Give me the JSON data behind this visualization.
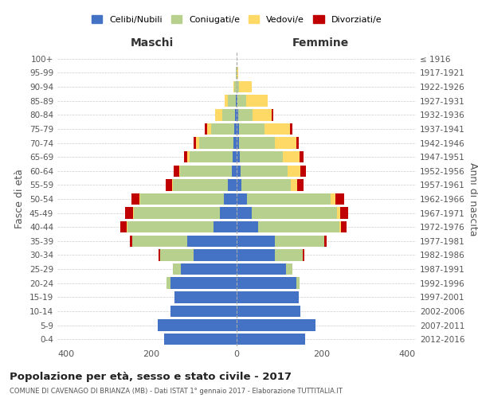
{
  "age_groups": [
    "0-4",
    "5-9",
    "10-14",
    "15-19",
    "20-24",
    "25-29",
    "30-34",
    "35-39",
    "40-44",
    "45-49",
    "50-54",
    "55-59",
    "60-64",
    "65-69",
    "70-74",
    "75-79",
    "80-84",
    "85-89",
    "90-94",
    "95-99",
    "100+"
  ],
  "birth_years": [
    "2012-2016",
    "2007-2011",
    "2002-2006",
    "1997-2001",
    "1992-1996",
    "1987-1991",
    "1982-1986",
    "1977-1981",
    "1972-1976",
    "1967-1971",
    "1962-1966",
    "1957-1961",
    "1952-1956",
    "1947-1951",
    "1942-1946",
    "1937-1941",
    "1932-1936",
    "1927-1931",
    "1922-1926",
    "1917-1921",
    "≤ 1916"
  ],
  "maschi": {
    "celibi": [
      170,
      185,
      155,
      145,
      155,
      130,
      100,
      115,
      55,
      40,
      30,
      20,
      12,
      10,
      8,
      5,
      3,
      2,
      0,
      0,
      0
    ],
    "coniugati": [
      0,
      0,
      0,
      0,
      10,
      20,
      80,
      130,
      200,
      200,
      195,
      130,
      120,
      100,
      80,
      55,
      30,
      18,
      5,
      1,
      0
    ],
    "vedovi": [
      0,
      0,
      0,
      0,
      0,
      0,
      0,
      0,
      2,
      2,
      2,
      2,
      3,
      5,
      8,
      10,
      18,
      8,
      2,
      0,
      0
    ],
    "divorziati": [
      0,
      0,
      0,
      0,
      0,
      0,
      3,
      5,
      15,
      20,
      20,
      15,
      12,
      8,
      5,
      5,
      0,
      0,
      0,
      0,
      0
    ]
  },
  "femmine": {
    "nubili": [
      160,
      185,
      150,
      145,
      140,
      115,
      90,
      90,
      50,
      35,
      25,
      12,
      10,
      8,
      5,
      5,
      3,
      2,
      0,
      0,
      0
    ],
    "coniugate": [
      0,
      0,
      0,
      0,
      8,
      15,
      65,
      115,
      190,
      200,
      195,
      115,
      110,
      100,
      85,
      60,
      35,
      20,
      5,
      0,
      0
    ],
    "vedove": [
      0,
      0,
      0,
      0,
      0,
      0,
      0,
      0,
      5,
      8,
      12,
      15,
      30,
      40,
      50,
      60,
      45,
      50,
      30,
      3,
      0
    ],
    "divorziate": [
      0,
      0,
      0,
      0,
      0,
      0,
      3,
      5,
      12,
      18,
      20,
      15,
      12,
      8,
      5,
      5,
      3,
      0,
      0,
      0,
      0
    ]
  },
  "colors": {
    "celibi": "#4472c4",
    "coniugati": "#b8d08d",
    "vedovi": "#ffd966",
    "divorziati": "#c00000"
  },
  "title": "Popolazione per età, sesso e stato civile - 2017",
  "subtitle": "COMUNE DI CAVENAGO DI BRIANZA (MB) - Dati ISTAT 1° gennaio 2017 - Elaborazione TUTTITALIA.IT",
  "xlabel_left": "Maschi",
  "xlabel_right": "Femmine",
  "ylabel_left": "Fasce di età",
  "ylabel_right": "Anni di nascita",
  "xlim": 420,
  "background_color": "#ffffff",
  "grid_color": "#cccccc"
}
